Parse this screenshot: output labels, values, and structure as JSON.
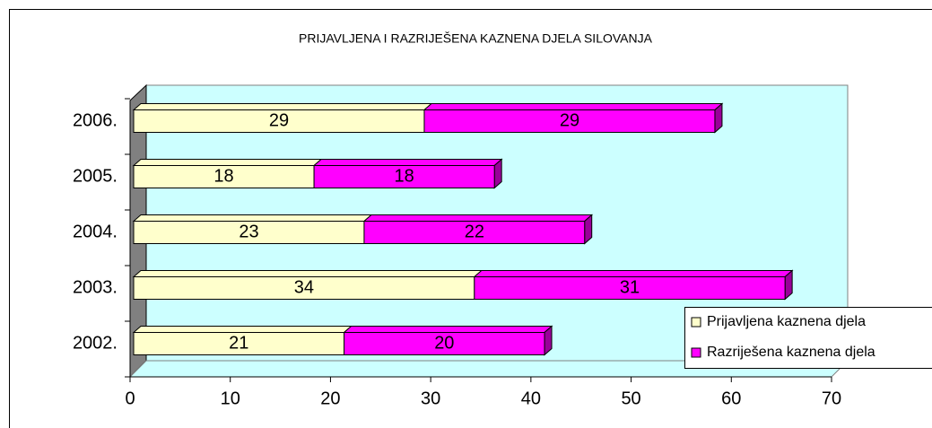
{
  "chart_data": {
    "type": "bar",
    "stacked": true,
    "orientation": "horizontal",
    "title": "PRIJAVLJENA I RAZRIJEŠENA KAZNENA DJELA SILOVANJA",
    "categories": [
      "2002.",
      "2003.",
      "2004.",
      "2005.",
      "2006."
    ],
    "series": [
      {
        "name": "Prijavljena kaznena djela",
        "color": "#ffffcc",
        "values": [
          21,
          34,
          23,
          18,
          29
        ]
      },
      {
        "name": "Razriješena kaznena djela",
        "color": "#ff00ff",
        "values": [
          20,
          31,
          22,
          18,
          29
        ]
      }
    ],
    "xlim": [
      0,
      70
    ],
    "xticks": [
      0,
      10,
      20,
      30,
      40,
      50,
      60,
      70
    ],
    "legend": "right",
    "background": "#ccffff"
  }
}
